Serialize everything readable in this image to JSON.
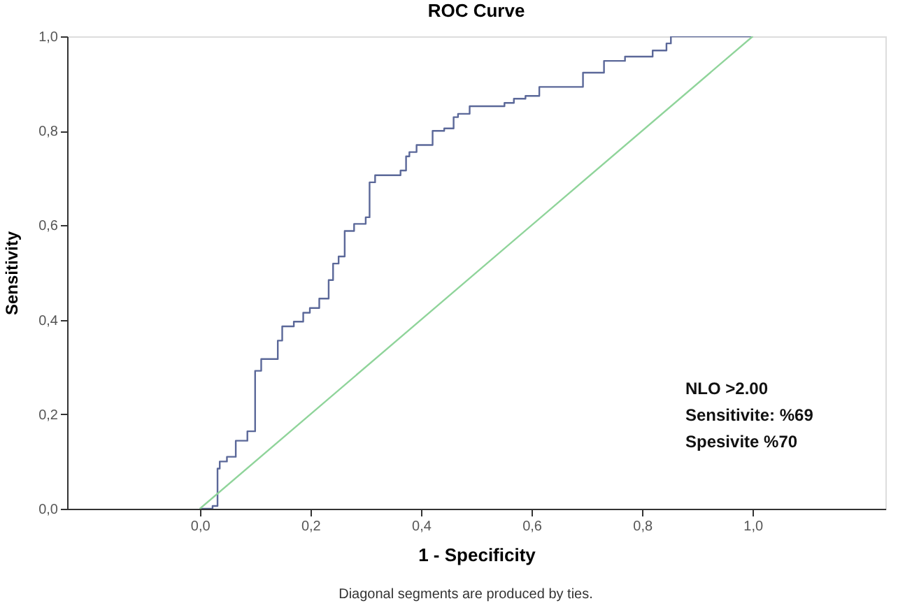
{
  "chart_data": {
    "type": "step",
    "title": "ROC Curve",
    "xlabel": "1 - Specificity",
    "ylabel": "Sensitivity",
    "xlim": [
      -0.24,
      1.24
    ],
    "ylim": [
      0,
      1
    ],
    "xticks": [
      {
        "value": 0,
        "label": "0,0"
      },
      {
        "value": 0.2,
        "label": "0,2"
      },
      {
        "value": 0.4,
        "label": "0,4"
      },
      {
        "value": 0.6,
        "label": "0,6"
      },
      {
        "value": 0.8,
        "label": "0,8"
      },
      {
        "value": 1,
        "label": "1,0"
      }
    ],
    "yticks": [
      {
        "value": 0,
        "label": "0,0"
      },
      {
        "value": 0.2,
        "label": "0,2"
      },
      {
        "value": 0.4,
        "label": "0,4"
      },
      {
        "value": 0.6,
        "label": "0,6"
      },
      {
        "value": 0.8,
        "label": "0,8"
      },
      {
        "value": 1,
        "label": "1,0"
      }
    ],
    "grid": false,
    "line_style": "solid",
    "series": [
      {
        "color": "#5b6899",
        "x": [
          0,
          0.023,
          0.032,
          0.036,
          0.049,
          0.065,
          0.086,
          0.1,
          0.111,
          0.141,
          0.149,
          0.17,
          0.187,
          0.199,
          0.216,
          0.233,
          0.241,
          0.251,
          0.262,
          0.279,
          0.3,
          0.307,
          0.317,
          0.363,
          0.373,
          0.379,
          0.392,
          0.421,
          0.442,
          0.459,
          0.467,
          0.488,
          0.551,
          0.568,
          0.589,
          0.614,
          0.693,
          0.731,
          0.769,
          0.819,
          0.844,
          0.852,
          1
        ],
        "values": [
          0,
          0.006,
          0.085,
          0.1,
          0.11,
          0.144,
          0.164,
          0.292,
          0.317,
          0.356,
          0.386,
          0.396,
          0.415,
          0.425,
          0.445,
          0.484,
          0.519,
          0.534,
          0.588,
          0.603,
          0.617,
          0.691,
          0.706,
          0.716,
          0.746,
          0.755,
          0.77,
          0.8,
          0.805,
          0.829,
          0.836,
          0.852,
          0.859,
          0.868,
          0.874,
          0.893,
          0.923,
          0.948,
          0.957,
          0.97,
          0.985,
          1,
          1
        ]
      },
      {
        "type": "line",
        "color": "#8fd49a",
        "x": [
          0,
          1
        ],
        "values": [
          0,
          1
        ]
      }
    ],
    "annotations": [
      "NLO >2.00",
      "Sensitivite: %69",
      "Spesivite %70",
      "Diagonal segments are produced by ties."
    ]
  }
}
